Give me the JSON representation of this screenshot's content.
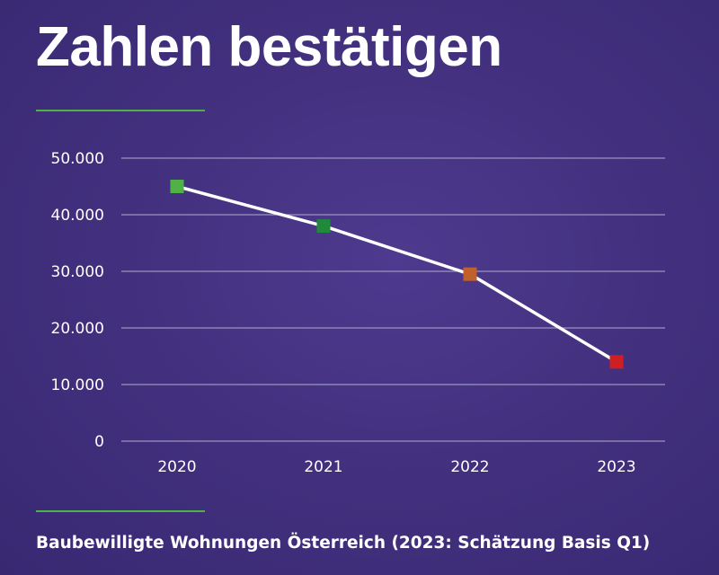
{
  "title": "Zahlen bestätigen",
  "caption": "Baubewilligte Wohnungen Österreich (2023: Schätzung Basis Q1)",
  "colors": {
    "background": "#43317f",
    "accent_rule": "#4fb246",
    "line": "#ffffff",
    "gridline": "#9c93bf"
  },
  "chart_data": {
    "type": "line",
    "title": "Zahlen bestätigen",
    "xlabel": "",
    "ylabel": "",
    "categories": [
      "2020",
      "2021",
      "2022",
      "2023"
    ],
    "series": [
      {
        "values": [
          45000,
          38000,
          29500,
          14000
        ],
        "marker_colors": [
          "#4fb246",
          "#1e8a3a",
          "#c0602a",
          "#d01f23"
        ]
      }
    ],
    "ylim": [
      0,
      50000
    ],
    "yticks": [
      0,
      10000,
      20000,
      30000,
      40000,
      50000
    ],
    "ytick_labels": [
      "0",
      "10.000",
      "20.000",
      "30.000",
      "40.000",
      "50.000"
    ],
    "grid": true,
    "legend": "none"
  }
}
